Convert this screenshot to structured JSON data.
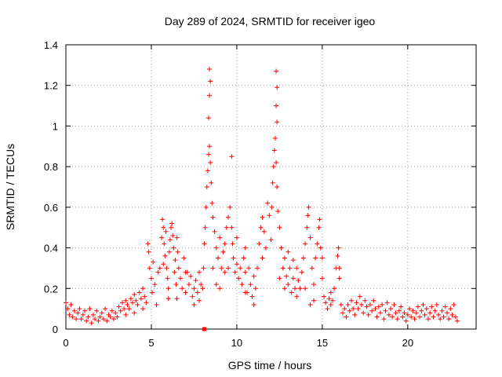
{
  "chart_data": {
    "type": "scatter",
    "title": "Day 289 of 2024, SRMTID for receiver igeo",
    "xlabel": "GPS time / hours",
    "ylabel": "SRMTID / TECUs",
    "xlim": [
      0,
      24
    ],
    "ylim": [
      0,
      1.4
    ],
    "xticks": [
      {
        "value": 0,
        "label": "0"
      },
      {
        "value": 5,
        "label": "5"
      },
      {
        "value": 10,
        "label": "10"
      },
      {
        "value": 15,
        "label": "15"
      },
      {
        "value": 20,
        "label": "20"
      }
    ],
    "yticks": [
      {
        "value": 0,
        "label": "0"
      },
      {
        "value": 0.2,
        "label": "0.2"
      },
      {
        "value": 0.4,
        "label": "0.4"
      },
      {
        "value": 0.6,
        "label": "0.6"
      },
      {
        "value": 0.8,
        "label": "0.8"
      },
      {
        "value": 1.0,
        "label": "1"
      },
      {
        "value": 1.2,
        "label": "1.2"
      },
      {
        "value": 1.4,
        "label": "1.4"
      }
    ],
    "grid": true,
    "marker": "plus",
    "color": "#ff0000",
    "series": [
      {
        "name": "SRMTID",
        "points": [
          [
            0.0,
            0.13
          ],
          [
            0.1,
            0.1
          ],
          [
            0.2,
            0.07
          ],
          [
            0.3,
            0.12
          ],
          [
            0.4,
            0.06
          ],
          [
            0.5,
            0.09
          ],
          [
            0.6,
            0.05
          ],
          [
            0.7,
            0.08
          ],
          [
            0.8,
            0.1
          ],
          [
            0.9,
            0.05
          ],
          [
            1.0,
            0.07
          ],
          [
            1.1,
            0.09
          ],
          [
            1.2,
            0.04
          ],
          [
            1.3,
            0.06
          ],
          [
            1.4,
            0.1
          ],
          [
            1.5,
            0.03
          ],
          [
            1.6,
            0.07
          ],
          [
            1.7,
            0.05
          ],
          [
            1.8,
            0.09
          ],
          [
            1.9,
            0.04
          ],
          [
            2.0,
            0.06
          ],
          [
            2.1,
            0.08
          ],
          [
            2.2,
            0.05
          ],
          [
            2.3,
            0.1
          ],
          [
            2.4,
            0.04
          ],
          [
            2.5,
            0.07
          ],
          [
            2.6,
            0.06
          ],
          [
            2.7,
            0.09
          ],
          [
            2.8,
            0.05
          ],
          [
            2.9,
            0.08
          ],
          [
            3.0,
            0.06
          ],
          [
            3.1,
            0.11
          ],
          [
            3.2,
            0.09
          ],
          [
            3.3,
            0.13
          ],
          [
            3.4,
            0.1
          ],
          [
            3.5,
            0.14
          ],
          [
            3.6,
            0.12
          ],
          [
            3.7,
            0.1
          ],
          [
            3.8,
            0.15
          ],
          [
            3.9,
            0.13
          ],
          [
            4.0,
            0.17
          ],
          [
            4.1,
            0.14
          ],
          [
            4.2,
            0.12
          ],
          [
            4.3,
            0.18
          ],
          [
            4.4,
            0.15
          ],
          [
            4.5,
            0.2
          ],
          [
            4.6,
            0.16
          ],
          [
            4.7,
            0.13
          ],
          [
            4.8,
            0.42
          ],
          [
            4.85,
            0.38
          ],
          [
            4.9,
            0.3
          ],
          [
            5.0,
            0.25
          ],
          [
            5.05,
            0.18
          ],
          [
            5.1,
            0.33
          ],
          [
            5.2,
            0.22
          ],
          [
            5.3,
            0.12
          ],
          [
            5.4,
            0.28
          ],
          [
            5.5,
            0.3
          ],
          [
            5.6,
            0.45
          ],
          [
            5.65,
            0.54
          ],
          [
            5.7,
            0.5
          ],
          [
            5.75,
            0.42
          ],
          [
            5.8,
            0.36
          ],
          [
            5.85,
            0.48
          ],
          [
            5.9,
            0.3
          ],
          [
            5.95,
            0.25
          ],
          [
            6.0,
            0.2
          ],
          [
            6.05,
            0.38
          ],
          [
            6.1,
            0.44
          ],
          [
            6.15,
            0.5
          ],
          [
            6.2,
            0.52
          ],
          [
            6.25,
            0.46
          ],
          [
            6.3,
            0.4
          ],
          [
            6.35,
            0.28
          ],
          [
            6.4,
            0.34
          ],
          [
            6.45,
            0.22
          ],
          [
            6.5,
            0.45
          ],
          [
            6.55,
            0.38
          ],
          [
            6.6,
            0.3
          ],
          [
            6.7,
            0.25
          ],
          [
            6.8,
            0.2
          ],
          [
            6.9,
            0.35
          ],
          [
            7.0,
            0.18
          ],
          [
            7.1,
            0.28
          ],
          [
            7.2,
            0.22
          ],
          [
            7.3,
            0.26
          ],
          [
            7.4,
            0.16
          ],
          [
            7.5,
            0.2
          ],
          [
            7.6,
            0.24
          ],
          [
            7.7,
            0.18
          ],
          [
            7.8,
            0.14
          ],
          [
            7.9,
            0.22
          ],
          [
            8.0,
            0.2
          ],
          [
            8.05,
            0.3
          ],
          [
            8.1,
            0.42
          ],
          [
            8.15,
            0.5
          ],
          [
            8.2,
            0.6
          ],
          [
            8.25,
            0.7
          ],
          [
            8.3,
            0.78
          ],
          [
            8.35,
            0.86
          ],
          [
            8.4,
            0.9
          ],
          [
            8.45,
            0.82
          ],
          [
            8.5,
            0.72
          ],
          [
            8.55,
            0.62
          ],
          [
            8.6,
            0.55
          ],
          [
            8.7,
            0.48
          ],
          [
            8.8,
            0.4
          ],
          [
            8.9,
            0.35
          ],
          [
            9.0,
            0.45
          ],
          [
            9.1,
            0.3
          ],
          [
            9.2,
            0.38
          ],
          [
            9.3,
            0.28
          ],
          [
            9.4,
            0.5
          ],
          [
            9.5,
            0.55
          ],
          [
            9.6,
            0.6
          ],
          [
            9.7,
            0.5
          ],
          [
            9.75,
            0.42
          ],
          [
            9.8,
            0.35
          ],
          [
            9.9,
            0.28
          ],
          [
            10.0,
            0.32
          ],
          [
            10.1,
            0.25
          ],
          [
            10.2,
            0.3
          ],
          [
            10.3,
            0.22
          ],
          [
            10.4,
            0.35
          ],
          [
            10.5,
            0.28
          ],
          [
            10.6,
            0.18
          ],
          [
            10.7,
            0.3
          ],
          [
            10.8,
            0.22
          ],
          [
            10.9,
            0.16
          ],
          [
            11.0,
            0.26
          ],
          [
            11.1,
            0.2
          ],
          [
            11.2,
            0.3
          ],
          [
            11.3,
            0.42
          ],
          [
            11.4,
            0.5
          ],
          [
            11.5,
            0.55
          ],
          [
            11.6,
            0.48
          ],
          [
            11.7,
            0.4
          ],
          [
            11.8,
            0.62
          ],
          [
            11.9,
            0.56
          ],
          [
            12.0,
            0.44
          ],
          [
            12.05,
            0.6
          ],
          [
            12.1,
            0.72
          ],
          [
            12.15,
            0.8
          ],
          [
            12.2,
            0.88
          ],
          [
            12.25,
            0.94
          ],
          [
            12.3,
            0.82
          ],
          [
            12.35,
            0.7
          ],
          [
            12.4,
            0.58
          ],
          [
            12.5,
            0.5
          ],
          [
            12.6,
            0.4
          ],
          [
            12.7,
            0.3
          ],
          [
            12.8,
            0.35
          ],
          [
            12.9,
            0.26
          ],
          [
            13.0,
            0.22
          ],
          [
            13.1,
            0.3
          ],
          [
            13.2,
            0.18
          ],
          [
            13.3,
            0.25
          ],
          [
            13.4,
            0.2
          ],
          [
            13.5,
            0.16
          ],
          [
            13.6,
            0.24
          ],
          [
            13.7,
            0.2
          ],
          [
            13.8,
            0.28
          ],
          [
            13.9,
            0.35
          ],
          [
            14.0,
            0.42
          ],
          [
            14.1,
            0.5
          ],
          [
            14.15,
            0.56
          ],
          [
            14.2,
            0.6
          ],
          [
            14.3,
            0.45
          ],
          [
            14.4,
            0.3
          ],
          [
            14.5,
            0.22
          ],
          [
            14.6,
            0.35
          ],
          [
            14.7,
            0.42
          ],
          [
            14.8,
            0.5
          ],
          [
            14.85,
            0.54
          ],
          [
            14.9,
            0.4
          ],
          [
            15.0,
            0.25
          ],
          [
            15.1,
            0.16
          ],
          [
            15.2,
            0.13
          ],
          [
            15.3,
            0.1
          ],
          [
            15.4,
            0.15
          ],
          [
            15.5,
            0.12
          ],
          [
            15.6,
            0.14
          ],
          [
            15.7,
            0.2
          ],
          [
            15.8,
            0.3
          ],
          [
            15.9,
            0.36
          ],
          [
            15.95,
            0.4
          ],
          [
            16.0,
            0.25
          ],
          [
            16.1,
            0.12
          ],
          [
            16.2,
            0.08
          ],
          [
            16.3,
            0.1
          ],
          [
            16.4,
            0.06
          ],
          [
            16.5,
            0.12
          ],
          [
            16.6,
            0.09
          ],
          [
            16.7,
            0.14
          ],
          [
            16.8,
            0.1
          ],
          [
            16.9,
            0.07
          ],
          [
            17.0,
            0.13
          ],
          [
            17.1,
            0.1
          ],
          [
            17.2,
            0.16
          ],
          [
            17.3,
            0.12
          ],
          [
            17.4,
            0.08
          ],
          [
            17.5,
            0.14
          ],
          [
            17.6,
            0.11
          ],
          [
            17.7,
            0.07
          ],
          [
            17.8,
            0.12
          ],
          [
            17.9,
            0.09
          ],
          [
            18.0,
            0.14
          ],
          [
            18.1,
            0.1
          ],
          [
            18.2,
            0.06
          ],
          [
            18.3,
            0.11
          ],
          [
            18.4,
            0.08
          ],
          [
            18.5,
            0.12
          ],
          [
            18.6,
            0.05
          ],
          [
            18.7,
            0.09
          ],
          [
            18.8,
            0.13
          ],
          [
            18.9,
            0.07
          ],
          [
            19.0,
            0.1
          ],
          [
            19.1,
            0.06
          ],
          [
            19.2,
            0.12
          ],
          [
            19.3,
            0.08
          ],
          [
            19.4,
            0.05
          ],
          [
            19.5,
            0.09
          ],
          [
            19.6,
            0.11
          ],
          [
            19.7,
            0.06
          ],
          [
            19.8,
            0.08
          ],
          [
            19.9,
            0.04
          ],
          [
            20.0,
            0.07
          ],
          [
            20.1,
            0.1
          ],
          [
            20.2,
            0.06
          ],
          [
            20.3,
            0.09
          ],
          [
            20.4,
            0.05
          ],
          [
            20.5,
            0.08
          ],
          [
            20.6,
            0.11
          ],
          [
            20.7,
            0.06
          ],
          [
            20.8,
            0.09
          ],
          [
            20.9,
            0.12
          ],
          [
            21.0,
            0.07
          ],
          [
            21.1,
            0.1
          ],
          [
            21.2,
            0.05
          ],
          [
            21.3,
            0.08
          ],
          [
            21.4,
            0.11
          ],
          [
            21.5,
            0.06
          ],
          [
            21.6,
            0.09
          ],
          [
            21.7,
            0.12
          ],
          [
            21.8,
            0.07
          ],
          [
            21.9,
            0.05
          ],
          [
            22.0,
            0.09
          ],
          [
            22.1,
            0.06
          ],
          [
            22.2,
            0.11
          ],
          [
            22.3,
            0.08
          ],
          [
            22.4,
            0.05
          ],
          [
            22.5,
            0.1
          ],
          [
            22.6,
            0.07
          ],
          [
            22.7,
            0.12
          ],
          [
            22.8,
            0.06
          ],
          [
            22.9,
            0.04
          ],
          [
            8.4,
            1.28
          ],
          [
            8.45,
            1.22
          ],
          [
            8.4,
            1.15
          ],
          [
            8.35,
            1.04
          ],
          [
            9.7,
            0.85
          ],
          [
            12.3,
            1.27
          ],
          [
            12.35,
            1.19
          ],
          [
            12.3,
            1.1
          ],
          [
            12.35,
            1.02
          ],
          [
            5.7,
            0.32
          ],
          [
            6.0,
            0.15
          ],
          [
            7.0,
            0.28
          ],
          [
            7.5,
            0.12
          ],
          [
            8.8,
            0.22
          ],
          [
            9.3,
            0.42
          ],
          [
            10.5,
            0.4
          ],
          [
            11.0,
            0.12
          ],
          [
            11.5,
            0.35
          ],
          [
            12.5,
            0.25
          ],
          [
            13.0,
            0.38
          ],
          [
            13.5,
            0.3
          ],
          [
            14.0,
            0.2
          ],
          [
            14.5,
            0.14
          ],
          [
            15.0,
            0.35
          ],
          [
            15.5,
            0.18
          ],
          [
            16.0,
            0.3
          ],
          [
            4.5,
            0.1
          ],
          [
            4.0,
            0.08
          ],
          [
            3.5,
            0.07
          ],
          [
            9.0,
            0.2
          ],
          [
            9.5,
            0.3
          ],
          [
            10.0,
            0.45
          ],
          [
            10.5,
            0.18
          ],
          [
            6.5,
            0.15
          ],
          [
            7.8,
            0.28
          ],
          [
            8.6,
            0.3
          ],
          [
            12.8,
            0.2
          ],
          [
            13.3,
            0.34
          ],
          [
            14.3,
            0.12
          ]
        ]
      }
    ],
    "special_points": [
      {
        "x": 8.1,
        "y": 0.0,
        "marker": "square"
      }
    ]
  }
}
